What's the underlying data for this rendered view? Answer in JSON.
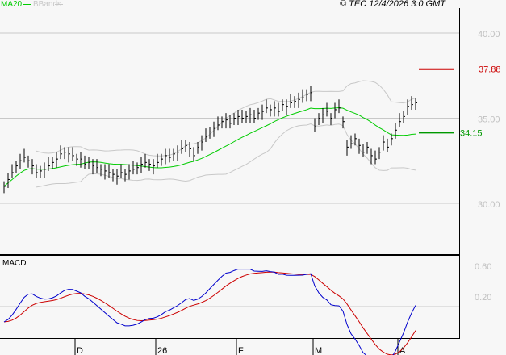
{
  "legend": {
    "ma": "MA20",
    "bb": "BBands",
    "ma_color": "#00cc00",
    "bb_color": "#c8c8c8"
  },
  "copyright": "© TEC 12/4/2026 3:0 GMT",
  "chart_data": {
    "type": "bar",
    "title": "",
    "price_ticks": [
      {
        "v": 40,
        "label": "40.00"
      },
      {
        "v": 35,
        "label": "35.00"
      },
      {
        "v": 30,
        "label": "30.00"
      }
    ],
    "ylim": [
      28.8,
      41.9
    ],
    "markers": [
      {
        "label": "37.88",
        "value": 37.88,
        "color": "#cc0000"
      },
      {
        "label": "34.15",
        "value": 34.15,
        "color": "#009900"
      }
    ],
    "closes": [
      31.0,
      31.4,
      31.8,
      32.2,
      32.5,
      32.7,
      32.5,
      32.2,
      31.8,
      31.9,
      32.0,
      32.2,
      32.4,
      32.6,
      32.9,
      33.0,
      32.9,
      32.8,
      32.6,
      32.6,
      32.3,
      32.4,
      32.2,
      32.1,
      32.0,
      31.9,
      31.8,
      31.7,
      31.6,
      31.8,
      31.7,
      31.9,
      32.0,
      32.1,
      32.3,
      32.4,
      32.3,
      32.2,
      32.4,
      32.6,
      32.8,
      32.7,
      32.9,
      33.0,
      33.2,
      33.4,
      33.2,
      32.8,
      33.3,
      33.6,
      33.9,
      34.2,
      34.4,
      34.6,
      34.8,
      34.9,
      34.7,
      35.0,
      35.1,
      35.0,
      35.1,
      35.2,
      35.0,
      35.3,
      35.4,
      35.6,
      35.5,
      35.6,
      35.4,
      35.8,
      35.7,
      35.9,
      36.0,
      36.1,
      36.2,
      36.4,
      36.5,
      34.5,
      35.0,
      35.2,
      35.4,
      35.0,
      35.5,
      35.6,
      34.8,
      33.3,
      33.5,
      33.8,
      33.4,
      33.0,
      33.3,
      32.8,
      32.6,
      33.0,
      33.6,
      33.3,
      33.8,
      34.3,
      34.8,
      35.1,
      35.7,
      35.8,
      35.9
    ],
    "macd": {
      "title": "MACD",
      "ticks": [
        {
          "v": 0.6,
          "label": "0.60"
        },
        {
          "v": 0.2,
          "label": "0.20"
        }
      ],
      "macd_color": "#0000cc",
      "signal_color": "#cc0000"
    },
    "x_labels": [
      {
        "label": "D",
        "bar": 18
      },
      {
        "label": "26",
        "bar": 38
      },
      {
        "label": "F",
        "bar": 58
      },
      {
        "label": "M",
        "bar": 77
      },
      {
        "label": "A",
        "bar": 98
      }
    ]
  }
}
